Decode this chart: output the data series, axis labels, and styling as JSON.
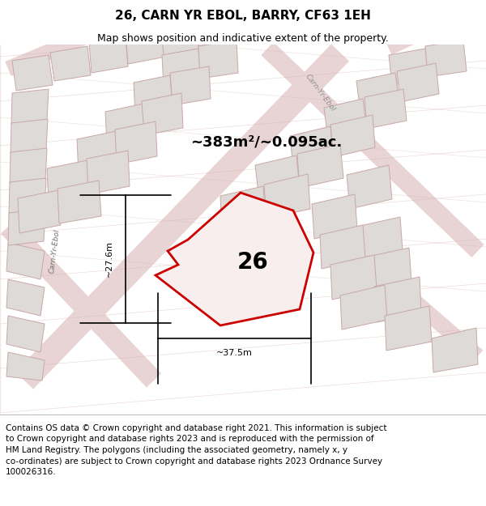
{
  "title": "26, CARN YR EBOL, BARRY, CF63 1EH",
  "subtitle": "Map shows position and indicative extent of the property.",
  "area_text": "~383m²/~0.095ac.",
  "width_label": "~37.5m",
  "height_label": "~27.6m",
  "number_label": "26",
  "footer_text": "Contains OS data © Crown copyright and database right 2021. This information is subject\nto Crown copyright and database rights 2023 and is reproduced with the permission of\nHM Land Registry. The polygons (including the associated geometry, namely x, y\nco-ordinates) are subject to Crown copyright and database rights 2023 Ordnance Survey\n100026316.",
  "map_bg": "#edeaea",
  "building_fill": "#dedad8",
  "building_edge": "#c8a8a8",
  "road_fill": "#f0e8e8",
  "highlight_fill": "#f8eeee",
  "highlight_edge": "#cc0000",
  "street_label_color": "#888888",
  "title_fontsize": 11,
  "subtitle_fontsize": 9,
  "footer_fontsize": 7.5,
  "area_fontsize": 13,
  "number_fontsize": 20,
  "dim_fontsize": 8
}
